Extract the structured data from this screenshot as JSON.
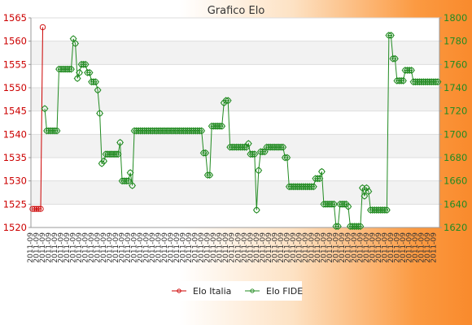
{
  "chart_data": {
    "type": "line",
    "title": "Grafico Elo",
    "legend_position": "bottom",
    "grid": true,
    "x_tick_label_sample": "2011-09",
    "y_left": {
      "min": 1520,
      "max": 1565,
      "ticks": [
        1520,
        1525,
        1530,
        1535,
        1540,
        1545,
        1550,
        1555,
        1560,
        1565
      ],
      "color": "#cc0000"
    },
    "y_right": {
      "min": 1620,
      "max": 1800,
      "ticks": [
        1620,
        1640,
        1660,
        1680,
        1700,
        1720,
        1740,
        1760,
        1780,
        1800
      ],
      "color": "#228b22"
    },
    "series": [
      {
        "name": "Elo Italia",
        "axis": "left",
        "color": "#cc0000",
        "values": [
          1524,
          1524,
          1524,
          1524,
          1524,
          1563
        ]
      },
      {
        "name": "Elo FIDE",
        "axis": "right",
        "color": "#228b22",
        "values": [
          null,
          null,
          null,
          null,
          null,
          null,
          1722,
          1703,
          1703,
          1703,
          1703,
          1703,
          1703,
          1756,
          1756,
          1756,
          1756,
          1756,
          1756,
          1756,
          1782,
          1778,
          1748,
          1753,
          1760,
          1760,
          1760,
          1753,
          1753,
          1745,
          1745,
          1745,
          1738,
          1718,
          1675,
          1677,
          1683,
          1683,
          1683,
          1683,
          1683,
          1683,
          1683,
          1693,
          1660,
          1660,
          1660,
          1660,
          1667,
          1656,
          1703,
          1703,
          1703,
          1703,
          1703,
          1703,
          1703,
          1703,
          1703,
          1703,
          1703,
          1703,
          1703,
          1703,
          1703,
          1703,
          1703,
          1703,
          1703,
          1703,
          1703,
          1703,
          1703,
          1703,
          1703,
          1703,
          1703,
          1703,
          1703,
          1703,
          1703,
          1703,
          1703,
          1703,
          1684,
          1684,
          1665,
          1665,
          1707,
          1707,
          1707,
          1707,
          1707,
          1707,
          1727,
          1729,
          1729,
          1689,
          1689,
          1689,
          1689,
          1689,
          1689,
          1689,
          1689,
          1689,
          1692,
          1683,
          1683,
          1683,
          1635,
          1669,
          1685,
          1685,
          1685,
          1689,
          1689,
          1689,
          1689,
          1689,
          1689,
          1689,
          1689,
          1689,
          1680,
          1680,
          1655,
          1655,
          1655,
          1655,
          1655,
          1655,
          1655,
          1655,
          1655,
          1655,
          1655,
          1655,
          1655,
          1662,
          1662,
          1662,
          1668,
          1640,
          1640,
          1640,
          1640,
          1640,
          1640,
          1621,
          1621,
          1640,
          1640,
          1640,
          1640,
          1638,
          1621,
          1621,
          1621,
          1621,
          1621,
          1621,
          1654,
          1647,
          1654,
          1651,
          1635,
          1635,
          1635,
          1635,
          1635,
          1635,
          1635,
          1635,
          1635,
          1785,
          1785,
          1765,
          1765,
          1746,
          1746,
          1746,
          1746,
          1755,
          1755,
          1755,
          1755,
          1745,
          1745,
          1745,
          1745,
          1745,
          1745,
          1745,
          1745,
          1745,
          1745,
          1745,
          1745,
          1745
        ]
      }
    ]
  }
}
